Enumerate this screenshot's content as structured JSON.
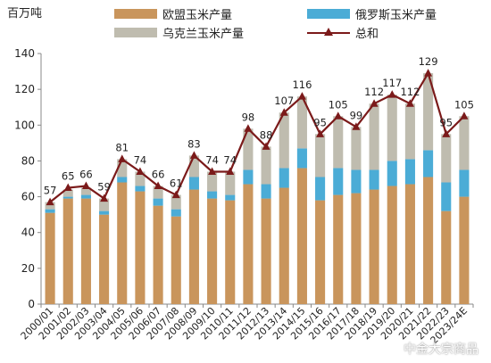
{
  "unit_label": "百万吨",
  "watermark": "中金大宗商品",
  "legend": {
    "eu": "欧盟玉米产量",
    "ru": "俄罗斯玉米产量",
    "ua": "乌克兰玉米产量",
    "total": "总和"
  },
  "colors": {
    "eu": "#c9955c",
    "ru": "#4bacd6",
    "ua": "#bfbcaf",
    "total": "#7b1a1a",
    "axis": "#888888"
  },
  "chart_data": {
    "type": "bar",
    "stacked": true,
    "categories": [
      "2000/01",
      "2001/02",
      "2002/03",
      "2003/04",
      "2004/05",
      "2005/06",
      "2006/07",
      "2007/08",
      "2008/09",
      "2009/10",
      "2010/11",
      "2011/12",
      "2012/13",
      "2013/14",
      "2014/15",
      "2015/16",
      "2016/17",
      "2017/18",
      "2018/19",
      "2019/20",
      "2020/21",
      "2021/22",
      "2022/23",
      "2023/24E"
    ],
    "series": [
      {
        "name": "欧盟玉米产量",
        "key": "eu",
        "values": [
          51,
          59,
          59,
          50,
          68,
          63,
          55,
          49,
          64,
          59,
          58,
          67,
          59,
          65,
          76,
          58,
          61,
          62,
          64,
          66,
          67,
          71,
          52,
          60
        ]
      },
      {
        "name": "俄罗斯玉米产量",
        "key": "ru",
        "values": [
          2,
          1,
          2,
          2,
          3,
          3,
          4,
          4,
          7,
          4,
          3,
          8,
          8,
          11,
          11,
          13,
          15,
          13,
          11,
          14,
          14,
          15,
          16,
          15
        ]
      },
      {
        "name": "乌克兰玉米产量",
        "key": "ua",
        "values": [
          4,
          4,
          4,
          7,
          10,
          8,
          7,
          8,
          12,
          11,
          13,
          23,
          21,
          31,
          29,
          24,
          29,
          24,
          37,
          37,
          31,
          43,
          27,
          30
        ]
      }
    ],
    "line": {
      "name": "总和",
      "key": "total",
      "values": [
        57,
        65,
        66,
        59,
        81,
        74,
        66,
        61,
        83,
        74,
        74,
        98,
        88,
        107,
        116,
        95,
        105,
        99,
        112,
        117,
        112,
        129,
        95,
        105
      ]
    },
    "ylim": [
      0,
      140
    ],
    "yticks": [
      0,
      20,
      40,
      60,
      80,
      100,
      120,
      140
    ],
    "grid": false,
    "legend_position": "top"
  }
}
